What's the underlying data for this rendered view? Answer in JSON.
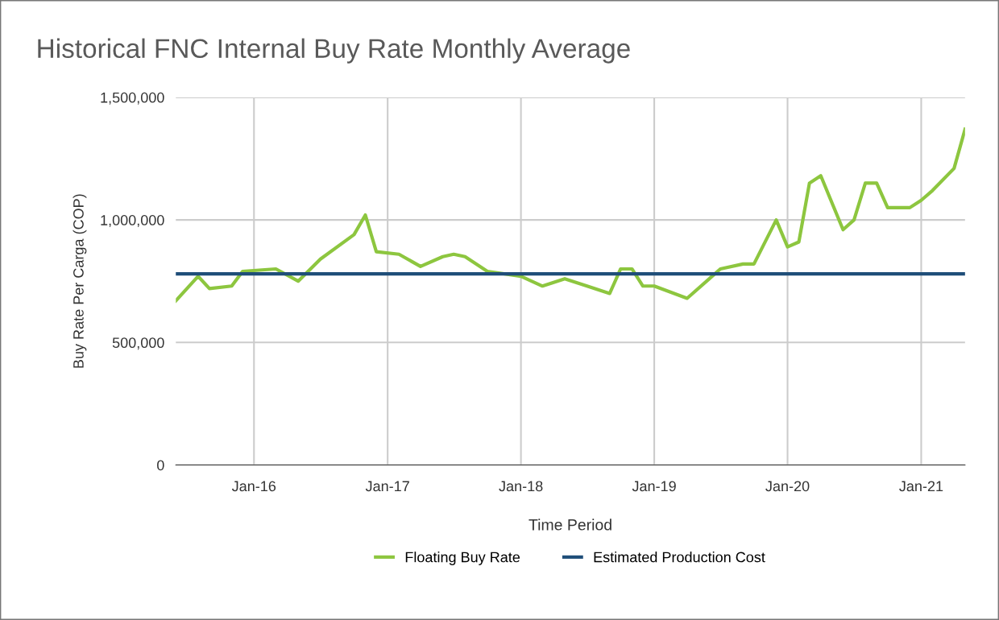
{
  "chart_data": {
    "type": "line",
    "title": "Historical FNC Internal Buy Rate Monthly Average",
    "xlabel": "Time Period",
    "ylabel": "Buy Rate Per Carga (COP)",
    "series": [
      {
        "name": "Floating Buy Rate",
        "color": "#8dc63f",
        "x": [
          "2015-06",
          "2015-08",
          "2015-09",
          "2015-11",
          "2015-12",
          "2016-03",
          "2016-05",
          "2016-07",
          "2016-10",
          "2016-11",
          "2016-12",
          "2017-02",
          "2017-04",
          "2017-06",
          "2017-07",
          "2017-08",
          "2017-10",
          "2018-01",
          "2018-03",
          "2018-05",
          "2018-07",
          "2018-09",
          "2018-10",
          "2018-11",
          "2018-12",
          "2019-01",
          "2019-04",
          "2019-06",
          "2019-07",
          "2019-09",
          "2019-10",
          "2019-12",
          "2020-01",
          "2020-02",
          "2020-03",
          "2020-04",
          "2020-06",
          "2020-07",
          "2020-08",
          "2020-09",
          "2020-10",
          "2020-11",
          "2020-12",
          "2021-01",
          "2021-02",
          "2021-04",
          "2021-05"
        ],
        "values": [
          670000,
          770000,
          720000,
          730000,
          790000,
          800000,
          750000,
          840000,
          940000,
          1020000,
          870000,
          860000,
          810000,
          850000,
          860000,
          850000,
          790000,
          770000,
          730000,
          760000,
          730000,
          700000,
          800000,
          800000,
          730000,
          730000,
          680000,
          760000,
          800000,
          820000,
          820000,
          1000000,
          890000,
          910000,
          1150000,
          1180000,
          960000,
          1000000,
          1150000,
          1150000,
          1050000,
          1050000,
          1050000,
          1080000,
          1120000,
          1210000,
          1370000
        ]
      },
      {
        "name": "Estimated Production Cost",
        "color": "#1f4e79",
        "x": [
          "2015-06",
          "2021-05"
        ],
        "values": [
          780000,
          780000
        ]
      }
    ],
    "xlim": [
      "2015-06-01",
      "2021-05-01"
    ],
    "xticks": [
      {
        "value": "2016-01",
        "label": "Jan-16"
      },
      {
        "value": "2017-01",
        "label": "Jan-17"
      },
      {
        "value": "2018-01",
        "label": "Jan-18"
      },
      {
        "value": "2019-01",
        "label": "Jan-19"
      },
      {
        "value": "2020-01",
        "label": "Jan-20"
      },
      {
        "value": "2021-01",
        "label": "Jan-21"
      }
    ],
    "ylim": [
      0,
      1500000
    ],
    "yticks": [
      0,
      {
        "value": 500000,
        "label": "500,000"
      },
      {
        "value": 1000000,
        "label": "1,000,000"
      },
      {
        "value": 1500000,
        "label": "1,500,000"
      }
    ],
    "grid": true,
    "legend": "bottom",
    "marker": "none",
    "line_style": "solid"
  }
}
